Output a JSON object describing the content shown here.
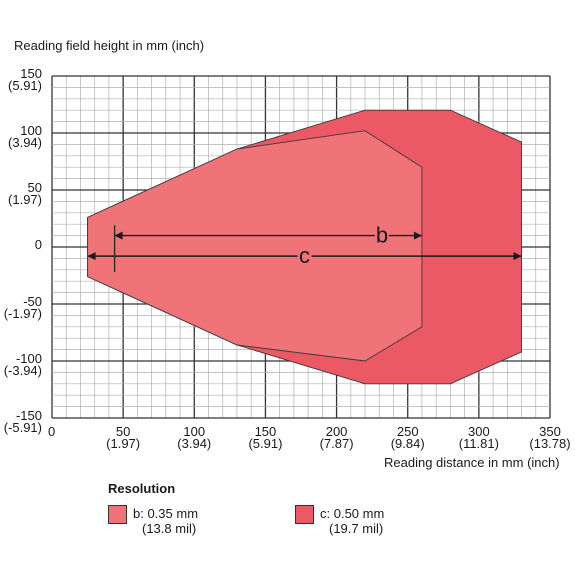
{
  "chart_data": {
    "type": "area",
    "title": "",
    "ylabel": "Reading field height in mm (inch)",
    "xlabel": "Reading distance in mm (inch)",
    "xlim": [
      0,
      350
    ],
    "ylim": [
      -150,
      150
    ],
    "x_ticks": [
      {
        "value": 0,
        "label": "0",
        "sub": ""
      },
      {
        "value": 50,
        "label": "50",
        "sub": "(1.97)"
      },
      {
        "value": 100,
        "label": "100",
        "sub": "(3.94)"
      },
      {
        "value": 150,
        "label": "150",
        "sub": "(5.91)"
      },
      {
        "value": 200,
        "label": "200",
        "sub": "(7.87)"
      },
      {
        "value": 250,
        "label": "250",
        "sub": "(9.84)"
      },
      {
        "value": 300,
        "label": "300",
        "sub": "(11.81)"
      },
      {
        "value": 350,
        "label": "350",
        "sub": "(13.78)"
      }
    ],
    "y_ticks": [
      {
        "value": 150,
        "label": "150",
        "sub": "(5.91)"
      },
      {
        "value": 100,
        "label": "100",
        "sub": "(3.94)"
      },
      {
        "value": 50,
        "label": "50",
        "sub": "(1.97)"
      },
      {
        "value": 0,
        "label": "0",
        "sub": ""
      },
      {
        "value": -50,
        "label": "-50",
        "sub": "(-1.97)"
      },
      {
        "value": -100,
        "label": "-100",
        "sub": "(-3.94)"
      },
      {
        "value": -150,
        "label": "-150",
        "sub": "(-5.91)"
      }
    ],
    "grid": true,
    "series": [
      {
        "name": "c",
        "color": "#eb5a64",
        "polygon": [
          [
            25,
            26
          ],
          [
            130,
            86
          ],
          [
            220,
            120
          ],
          [
            280,
            120
          ],
          [
            330,
            92
          ],
          [
            330,
            -92
          ],
          [
            280,
            -120
          ],
          [
            220,
            -120
          ],
          [
            130,
            -86
          ],
          [
            25,
            -26
          ]
        ],
        "range_line": {
          "x_start": 25,
          "x_end": 330,
          "y": -8
        }
      },
      {
        "name": "b",
        "color": "#f07378",
        "polygon": [
          [
            25,
            26
          ],
          [
            130,
            86
          ],
          [
            220,
            102
          ],
          [
            260,
            70
          ],
          [
            260,
            -70
          ],
          [
            220,
            -100
          ],
          [
            130,
            -86
          ],
          [
            25,
            -26
          ]
        ],
        "range_line": {
          "x_start": 44,
          "x_end": 260,
          "y": 10
        }
      }
    ],
    "legend": {
      "title": "Resolution",
      "items": [
        {
          "key": "b",
          "label": "b: 0.35 mm",
          "sub": "(13.8 mil)",
          "color": "#f07378"
        },
        {
          "key": "c",
          "label": "c: 0.50 mm",
          "sub": "(19.7 mil)",
          "color": "#eb5a64"
        }
      ]
    }
  }
}
